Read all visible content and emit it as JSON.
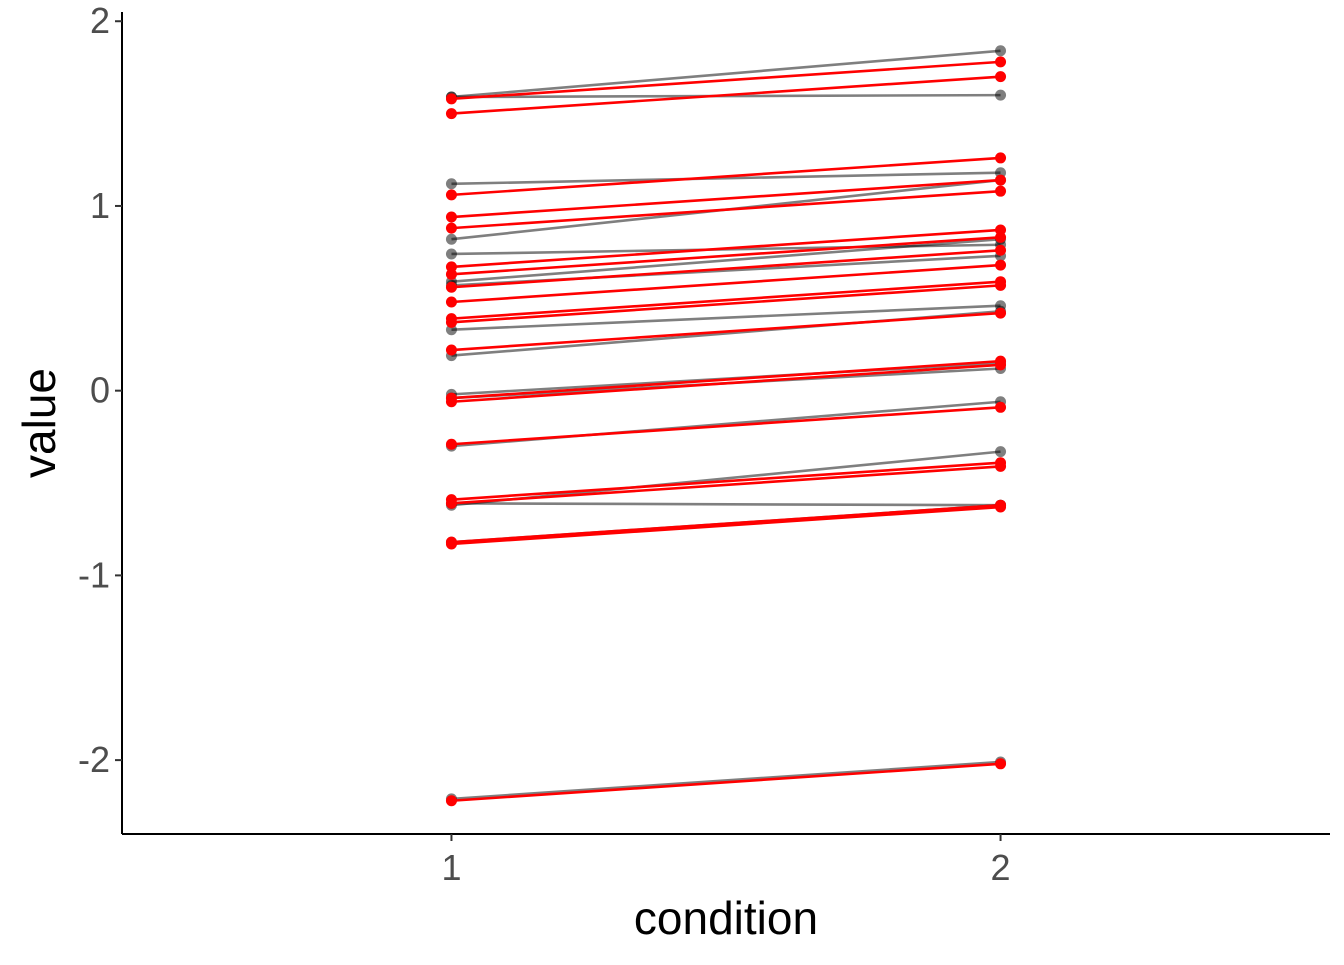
{
  "chart_data": {
    "type": "line",
    "title": "",
    "xlabel": "condition",
    "ylabel": "value",
    "x": [
      1,
      2
    ],
    "x_tick_labels": [
      "1",
      "2"
    ],
    "xlim": [
      0.4,
      2.6
    ],
    "ylim": [
      -2.4,
      2.05
    ],
    "y_ticks": [
      2,
      1,
      0,
      -1,
      -2
    ],
    "y_tick_labels": [
      "2",
      "1",
      "0",
      "-1",
      "-2"
    ],
    "grid": false,
    "legend": "none",
    "colors": {
      "observed": "#000000",
      "highlight": "#ff0000",
      "axis": "#000000",
      "tick_text": "#4d4d4d"
    },
    "observed_series": [
      {
        "values": [
          1.59,
          1.84
        ]
      },
      {
        "values": [
          1.59,
          1.6
        ]
      },
      {
        "values": [
          1.12,
          1.18
        ]
      },
      {
        "values": [
          0.82,
          1.14
        ]
      },
      {
        "values": [
          0.74,
          0.79
        ]
      },
      {
        "values": [
          0.59,
          0.82
        ]
      },
      {
        "values": [
          0.57,
          0.73
        ]
      },
      {
        "values": [
          0.33,
          0.46
        ]
      },
      {
        "values": [
          0.19,
          0.43
        ]
      },
      {
        "values": [
          -0.02,
          0.15
        ]
      },
      {
        "values": [
          -0.04,
          0.12
        ]
      },
      {
        "values": [
          -0.3,
          -0.06
        ]
      },
      {
        "values": [
          -0.62,
          -0.33
        ]
      },
      {
        "values": [
          -0.61,
          -0.62
        ]
      },
      {
        "values": [
          -0.82,
          -0.62
        ]
      },
      {
        "values": [
          -2.21,
          -2.01
        ]
      }
    ],
    "highlight_series": [
      {
        "values": [
          1.58,
          1.78
        ]
      },
      {
        "values": [
          1.5,
          1.7
        ]
      },
      {
        "values": [
          1.06,
          1.26
        ]
      },
      {
        "values": [
          0.94,
          1.14
        ]
      },
      {
        "values": [
          0.88,
          1.08
        ]
      },
      {
        "values": [
          0.67,
          0.87
        ]
      },
      {
        "values": [
          0.63,
          0.83
        ]
      },
      {
        "values": [
          0.56,
          0.76
        ]
      },
      {
        "values": [
          0.48,
          0.68
        ]
      },
      {
        "values": [
          0.39,
          0.59
        ]
      },
      {
        "values": [
          0.37,
          0.57
        ]
      },
      {
        "values": [
          0.22,
          0.42
        ]
      },
      {
        "values": [
          -0.04,
          0.16
        ]
      },
      {
        "values": [
          -0.06,
          0.14
        ]
      },
      {
        "values": [
          -0.29,
          -0.09
        ]
      },
      {
        "values": [
          -0.59,
          -0.39
        ]
      },
      {
        "values": [
          -0.61,
          -0.41
        ]
      },
      {
        "values": [
          -0.82,
          -0.62
        ]
      },
      {
        "values": [
          -0.83,
          -0.63
        ]
      },
      {
        "values": [
          -2.22,
          -2.02
        ]
      }
    ]
  }
}
